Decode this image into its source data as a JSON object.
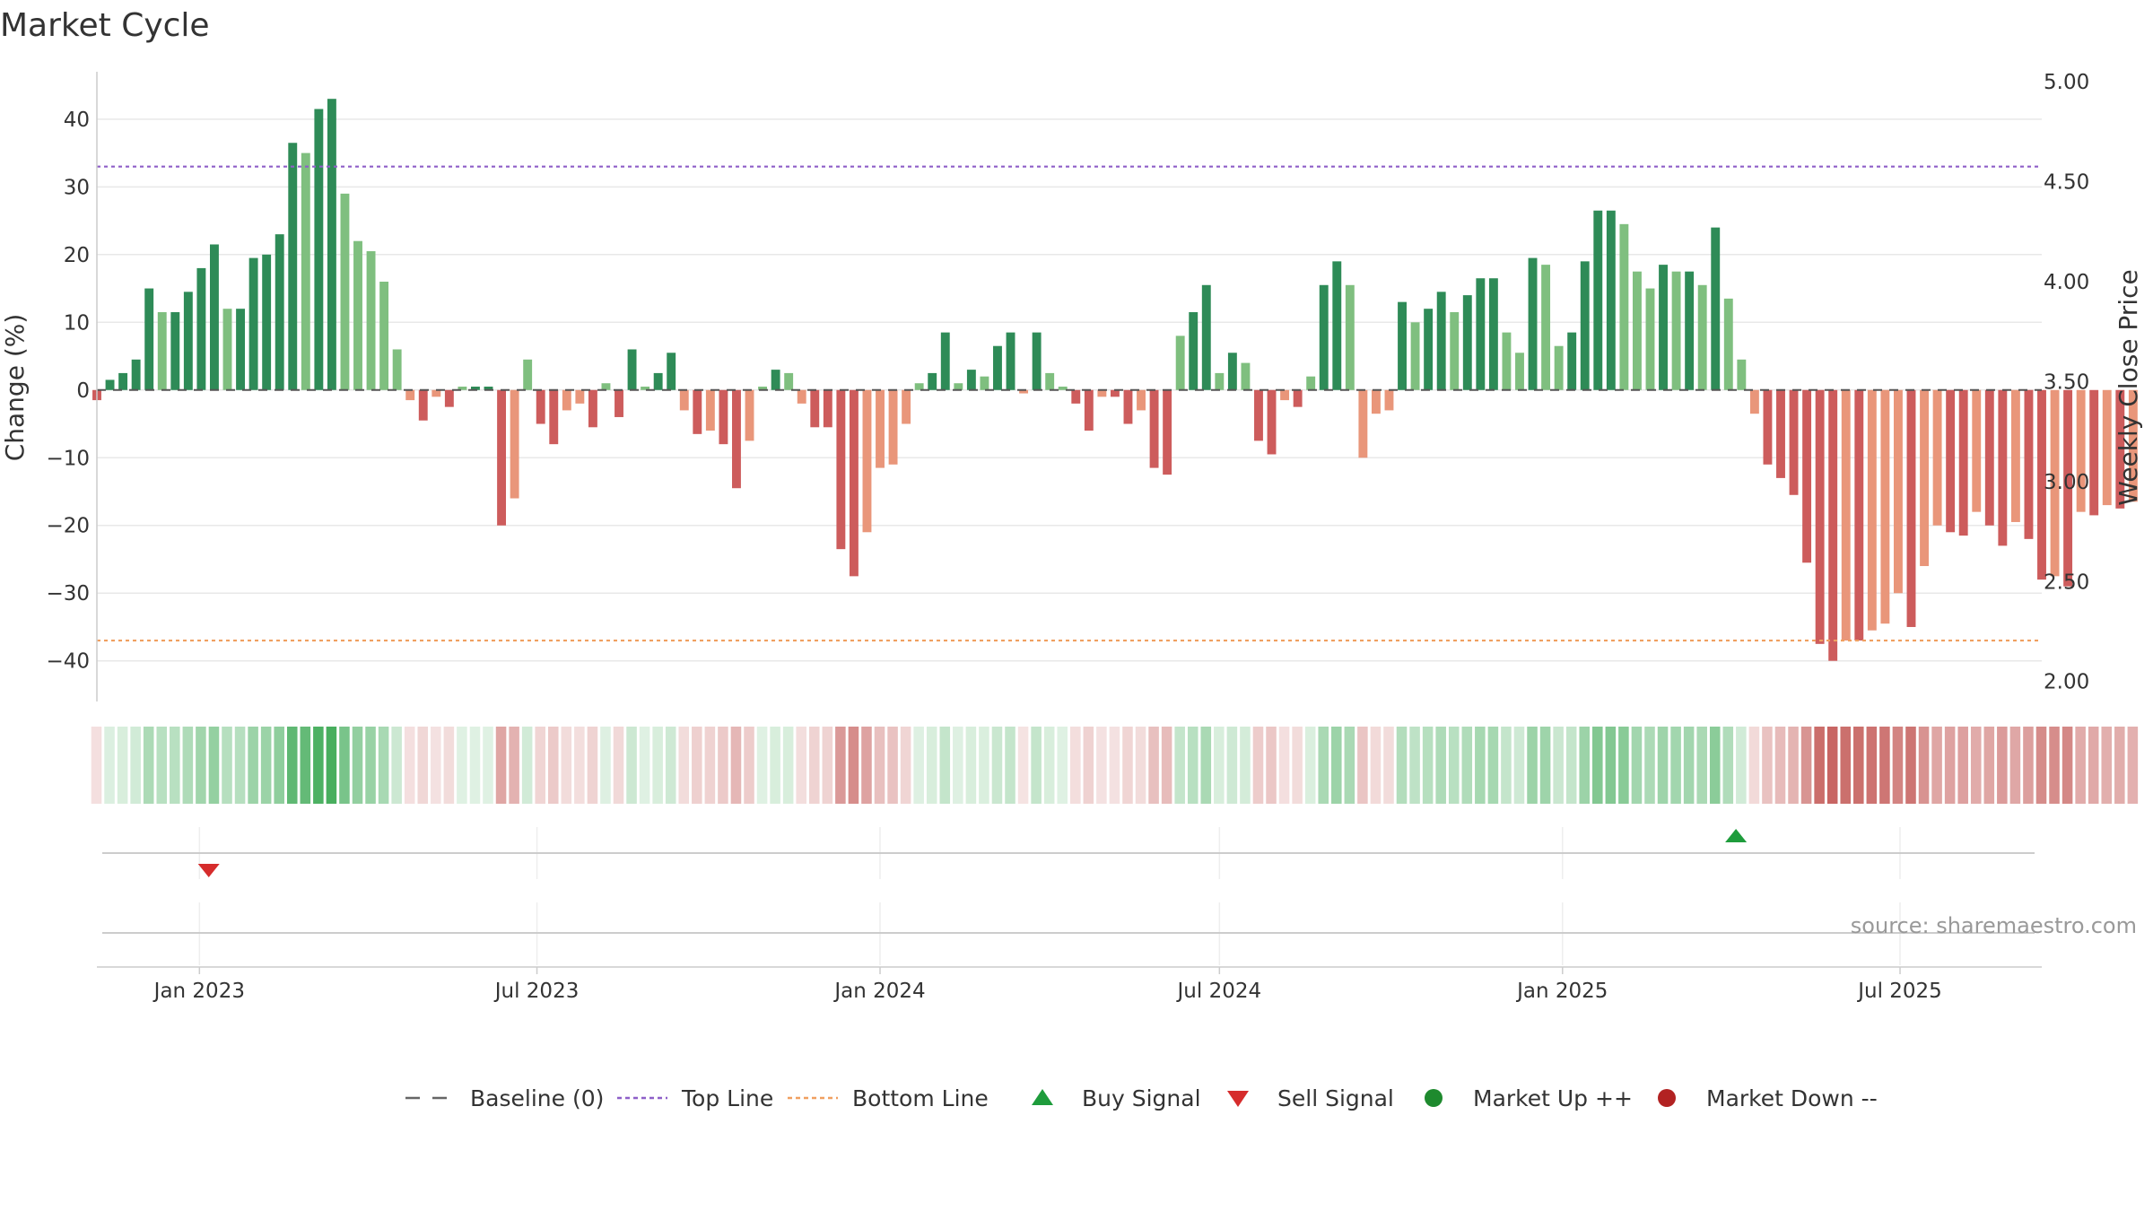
{
  "chart_data": {
    "type": "bar",
    "title": "Market Cycle",
    "source": "source: sharemaestro.com",
    "y_left": {
      "label": "Change (%)",
      "range": [
        -46,
        47
      ],
      "ticks": [
        40,
        30,
        20,
        10,
        0,
        -10,
        -20,
        -30,
        -40
      ],
      "tick_labels": [
        "40",
        "30",
        "20",
        "10",
        "0",
        "−10",
        "−20",
        "−30",
        "−40"
      ]
    },
    "y_right": {
      "label": "Weekly Close Price",
      "range": [
        1.9,
        5.05
      ],
      "ticks": [
        5.0,
        4.5,
        4.0,
        3.5,
        3.0,
        2.5,
        2.0
      ],
      "tick_labels": [
        "5.00",
        "4.50",
        "4.00",
        "3.50",
        "3.00",
        "2.50",
        "2.00"
      ]
    },
    "x_axis": {
      "start": "2022-11-07",
      "end": "2025-09-15",
      "ticks": [
        {
          "date": "2023-01-01",
          "label": "Jan 2023"
        },
        {
          "date": "2023-07-01",
          "label": "Jul 2023"
        },
        {
          "date": "2024-01-01",
          "label": "Jan 2024"
        },
        {
          "date": "2024-07-01",
          "label": "Jul 2024"
        },
        {
          "date": "2025-01-01",
          "label": "Jan 2025"
        },
        {
          "date": "2025-07-01",
          "label": "Jul 2025"
        }
      ]
    },
    "reference_lines": {
      "baseline": 0,
      "top_line": 33,
      "bottom_line": -37
    },
    "series": [
      {
        "start_date": "2022-11-07",
        "interval_days": 7,
        "values": [
          -1.5,
          1.5,
          2.5,
          4.5,
          15,
          11.5,
          11.5,
          14.5,
          18,
          21.5,
          12,
          12,
          19.5,
          20,
          23,
          36.5,
          35,
          41.5,
          43,
          29,
          22,
          20.5,
          16,
          6,
          -1.5,
          -4.5,
          -1,
          -2.5,
          0.5,
          0.5,
          0.5,
          -20,
          -16,
          4.5,
          -5,
          -8,
          -3,
          -2,
          -5.5,
          1,
          -4,
          6,
          0.5,
          2.5,
          5.5,
          -3,
          -6.5,
          -6,
          -8,
          -14.5,
          -7.5,
          0.5,
          3,
          2.5,
          -2,
          -5.5,
          -5.5,
          -23.5,
          -27.5,
          -21,
          -11.5,
          -11,
          -5,
          1,
          2.5,
          8.5,
          1,
          3,
          2,
          6.5,
          8.5,
          -0.5,
          8.5,
          2.5,
          0.5,
          -2,
          -6,
          -1,
          -1,
          -5,
          -3,
          -11.5,
          -12.5,
          8,
          11.5,
          15.5,
          2.5,
          5.5,
          4,
          -7.5,
          -9.5,
          -1.5,
          -2.5,
          2,
          15.5,
          19,
          15.5,
          -10,
          -3.5,
          -3,
          13,
          10,
          12,
          14.5,
          11.5,
          14,
          16.5,
          16.5,
          8.5,
          5.5,
          19.5,
          18.5,
          6.5,
          8.5,
          19,
          26.5,
          26.5,
          24.5,
          17.5,
          15,
          18.5,
          17.5,
          17.5,
          15.5,
          24,
          13.5,
          4.5,
          -3.5,
          -11,
          -13,
          -15.5,
          -25.5,
          -37.5,
          -40,
          -37,
          -37,
          -35.5,
          -34.5,
          -30,
          -35,
          -26,
          -20,
          -21,
          -21.5,
          -18,
          -20,
          -23,
          -19.5,
          -22,
          -28,
          -27.5,
          -29,
          -18,
          -18.5,
          -17,
          -17.5,
          -16.5
        ]
      }
    ],
    "signals": [
      {
        "type": "sell",
        "date": "2023-01-06"
      },
      {
        "type": "buy",
        "date": "2025-04-04"
      }
    ],
    "legend": {
      "placement": "bottom-center",
      "items": [
        {
          "label": "Baseline (0)",
          "marker": "dashed-line",
          "color": "#666666"
        },
        {
          "label": "Top Line",
          "marker": "dotted-line",
          "color": "#8e5fc8"
        },
        {
          "label": "Bottom Line",
          "marker": "dotted-line",
          "color": "#f0a060"
        },
        {
          "label": "Buy Signal",
          "marker": "triangle-up",
          "color": "#1e9c3c"
        },
        {
          "label": "Sell Signal",
          "marker": "triangle-down",
          "color": "#d62c2c"
        },
        {
          "label": "Market Up ++",
          "marker": "circle",
          "color": "#1e8a2e"
        },
        {
          "label": "Market Down --",
          "marker": "circle",
          "color": "#b22222"
        }
      ]
    },
    "colors": {
      "up_strong": "#2e8b57",
      "up_light": "#7fbf7f",
      "down_strong": "#cd5c5c",
      "down_light": "#e9967a",
      "grid": "#e8e8e8",
      "axis": "#cccccc",
      "heat_up": "#3aa852",
      "heat_down": "#c0504d"
    },
    "grid": true
  }
}
